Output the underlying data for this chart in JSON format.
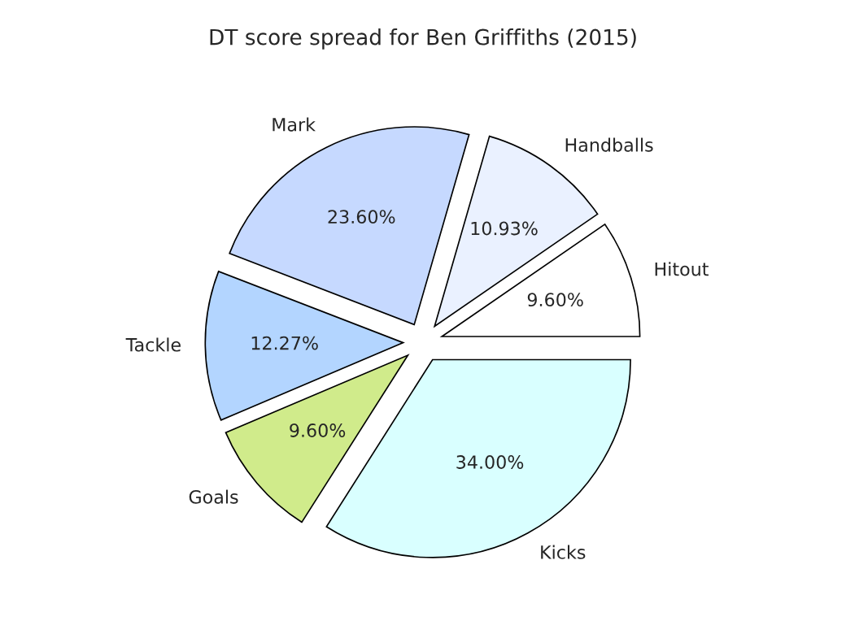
{
  "chart_data": {
    "type": "pie",
    "title": "DT score spread for Ben Griffiths (2015)",
    "categories": [
      "Hitout",
      "Handballs",
      "Mark",
      "Tackle",
      "Goals",
      "Kicks"
    ],
    "values": [
      9.6,
      10.93,
      23.6,
      12.27,
      9.6,
      34.0
    ],
    "value_labels": [
      "9.60%",
      "10.93%",
      "23.60%",
      "12.27%",
      "9.60%",
      "34.00%"
    ],
    "colors": [
      "#ffffff",
      "#eaf1ff",
      "#c6d9ff",
      "#b3d5ff",
      "#d0eb8b",
      "#d9ffff"
    ],
    "legend": false
  }
}
